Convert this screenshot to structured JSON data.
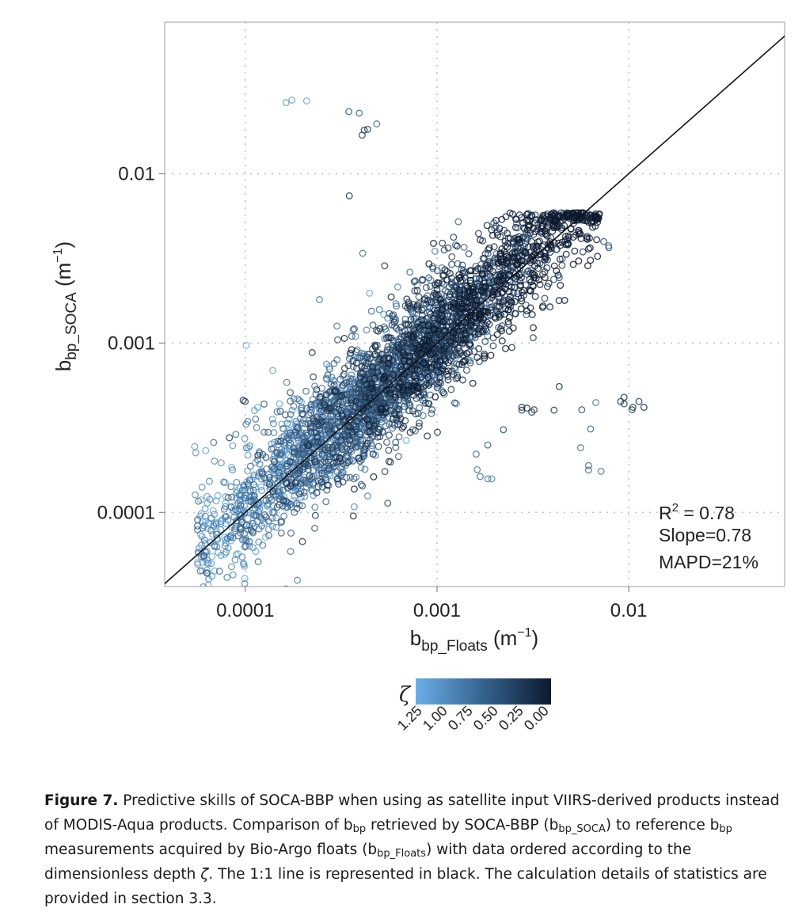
{
  "chart_data": {
    "type": "scatter",
    "x_scale": "log",
    "y_scale": "log",
    "xlim": [
      3.8e-05,
      0.065
    ],
    "ylim": [
      3.65e-05,
      0.0785
    ],
    "x_ticks": [
      {
        "value": 0.0001,
        "label": "0.0001"
      },
      {
        "value": 0.001,
        "label": "0.001"
      },
      {
        "value": 0.01,
        "label": "0.01"
      }
    ],
    "y_ticks": [
      {
        "value": 0.0001,
        "label": "0.0001"
      },
      {
        "value": 0.001,
        "label": "0.001"
      },
      {
        "value": 0.01,
        "label": "0.01"
      }
    ],
    "xlabel": {
      "base": "b",
      "sub": "bp_Floats",
      "unit_open": " (m",
      "unit_sup": "−1",
      "unit_close": ")"
    },
    "ylabel": {
      "base": "b",
      "sub": "bp_SOCA",
      "unit_open": " (m",
      "unit_sup": "−1",
      "unit_close": ")"
    },
    "grid": true,
    "reference_line": {
      "label": "1:1",
      "color": "#111111"
    },
    "stats": {
      "r2_label": "R",
      "r2_sup": "2",
      "r2_value": " = 0.78",
      "slope": "Slope=0.78",
      "mapd": "MAPD=21%"
    },
    "colorbar": {
      "variable": "ζ",
      "tick_labels": [
        "1.25",
        "1.00",
        "0.75",
        "0.50",
        "0.25",
        "0.00"
      ],
      "color_low_depth": "#0d1a2e",
      "color_high_depth": "#6aaee8"
    },
    "outlier_points": [
      {
        "x": 0.000163,
        "y": 0.0263,
        "zeta": 1.1
      },
      {
        "x": 0.000175,
        "y": 0.0272,
        "zeta": 1.15
      },
      {
        "x": 0.000209,
        "y": 0.0269,
        "zeta": 1.2
      },
      {
        "x": 0.000347,
        "y": 0.0233,
        "zeta": 0.5
      },
      {
        "x": 0.000393,
        "y": 0.0228,
        "zeta": 0.6
      },
      {
        "x": 0.000417,
        "y": 0.0181,
        "zeta": 0.3
      },
      {
        "x": 0.000435,
        "y": 0.0183,
        "zeta": 0.25
      },
      {
        "x": 0.000407,
        "y": 0.0169,
        "zeta": 0.35
      },
      {
        "x": 0.000485,
        "y": 0.0197,
        "zeta": 0.7
      },
      {
        "x": 0.000349,
        "y": 0.0074,
        "zeta": 0.2
      },
      {
        "x": 5.45e-05,
        "y": 0.000245,
        "zeta": 1.1
      },
      {
        "x": 5.51e-05,
        "y": 0.000225,
        "zeta": 1.1
      },
      {
        "x": 6.22e-05,
        "y": 0.000232,
        "zeta": 1.2
      },
      {
        "x": 5.48e-05,
        "y": 0.000127,
        "zeta": 1.0
      },
      {
        "x": 5.95e-05,
        "y": 0.000141,
        "zeta": 1.0
      },
      {
        "x": 0.00037,
        "y": 0.000108,
        "zeta": 1.0
      },
      {
        "x": 0.000435,
        "y": 0.000125,
        "zeta": 0.9
      },
      {
        "x": 0.00162,
        "y": 0.000179,
        "zeta": 0.8
      },
      {
        "x": 0.00168,
        "y": 0.000163,
        "zeta": 0.75
      },
      {
        "x": 0.00184,
        "y": 0.000158,
        "zeta": 0.8
      },
      {
        "x": 0.00193,
        "y": 0.000158,
        "zeta": 0.9
      },
      {
        "x": 0.0016,
        "y": 0.000221,
        "zeta": 0.75
      },
      {
        "x": 0.00184,
        "y": 0.00025,
        "zeta": 0.6
      },
      {
        "x": 0.00561,
        "y": 0.000241,
        "zeta": 0.75
      },
      {
        "x": 0.00617,
        "y": 0.000189,
        "zeta": 0.7
      },
      {
        "x": 0.00617,
        "y": 0.000178,
        "zeta": 0.7
      },
      {
        "x": 0.00632,
        "y": 0.000311,
        "zeta": 0.6
      },
      {
        "x": 0.00717,
        "y": 0.000175,
        "zeta": 0.75
      },
      {
        "x": 0.00673,
        "y": 0.000445,
        "zeta": 0.8
      },
      {
        "x": 0.00907,
        "y": 0.000452,
        "zeta": 0.3
      },
      {
        "x": 0.00945,
        "y": 0.000479,
        "zeta": 0.25
      },
      {
        "x": 0.00946,
        "y": 0.000438,
        "zeta": 0.3
      },
      {
        "x": 0.0105,
        "y": 0.000418,
        "zeta": 0.35
      },
      {
        "x": 0.0113,
        "y": 0.000452,
        "zeta": 0.35
      },
      {
        "x": 0.012,
        "y": 0.000418,
        "zeta": 0.2
      },
      {
        "x": 0.0104,
        "y": 0.000404,
        "zeta": 0.3
      },
      {
        "x": 0.00277,
        "y": 0.000418,
        "zeta": 0.2
      },
      {
        "x": 0.00294,
        "y": 0.000413,
        "zeta": 0.25
      },
      {
        "x": 0.00321,
        "y": 0.000404,
        "zeta": 0.3
      },
      {
        "x": 0.00277,
        "y": 0.000402,
        "zeta": 0.25
      },
      {
        "x": 0.00312,
        "y": 0.000391,
        "zeta": 0.3
      },
      {
        "x": 0.00408,
        "y": 0.000402,
        "zeta": 0.3
      },
      {
        "x": 0.00434,
        "y": 0.000554,
        "zeta": 0.2
      },
      {
        "x": 0.00569,
        "y": 0.000404,
        "zeta": 0.5
      },
      {
        "x": 0.00222,
        "y": 0.000308,
        "zeta": 0.4
      },
      {
        "x": 9.75e-05,
        "y": 0.00046,
        "zeta": 0.2
      },
      {
        "x": 9.98e-05,
        "y": 0.000452,
        "zeta": 0.25
      },
      {
        "x": 0.000101,
        "y": 0.000332,
        "zeta": 0.8
      },
      {
        "x": 0.000103,
        "y": 0.000345,
        "zeta": 0.8
      },
      {
        "x": 8.27e-05,
        "y": 0.000276,
        "zeta": 0.3
      },
      {
        "x": 6.91e-05,
        "y": 0.000201,
        "zeta": 1.0
      },
      {
        "x": 0.00785,
        "y": 0.00376,
        "zeta": 0.8
      },
      {
        "x": 0.00787,
        "y": 0.00366,
        "zeta": 0.5
      },
      {
        "x": 0.0074,
        "y": 0.00398,
        "zeta": 0.45
      }
    ],
    "cloud_points": "dense cloud of several thousand points along the 1:1 line (x ≈ 0.00006–0.006, y ≈ 0.0001–0.005); generated procedurally in the drawing script"
  },
  "caption": {
    "label": "Figure 7.",
    "seg1": " Predictive skills of SOCA-BBP when using as satellite input VIIRS-derived products instead of MODIS-Aqua products. Comparison of b",
    "sub1": "bp",
    "seg2": " retrieved by SOCA-BBP (b",
    "sub2": "bp_SOCA",
    "seg3": ") to reference b",
    "sub3": "bp",
    "seg4": " measurements acquired by Bio-Argo floats (b",
    "sub4": "bp_Floats",
    "seg5": ") with data ordered according to the dimensionless depth ",
    "zeta": "ζ",
    "seg6": ". The 1:1 line is represented in black. The calculation details of statistics are provided in section 3.3."
  }
}
